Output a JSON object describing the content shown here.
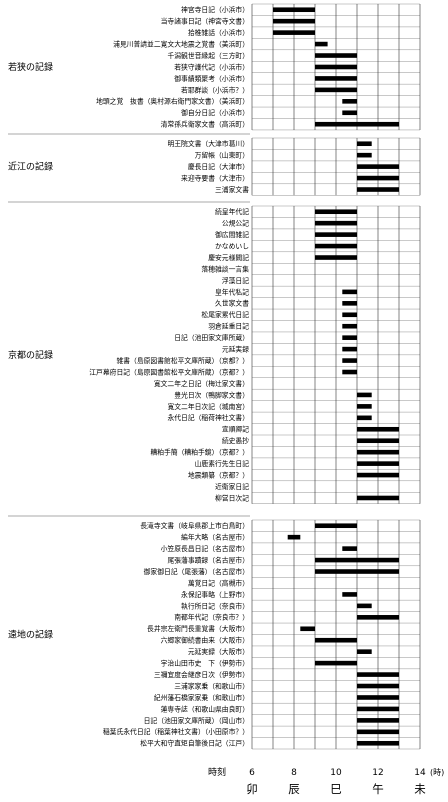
{
  "chart_data": {
    "type": "bar",
    "x_range": [
      6,
      14
    ],
    "x_ticks": [
      "6",
      "8",
      "10",
      "12",
      "14"
    ],
    "x_unit": "(時)",
    "x_axis_title": "時刻",
    "jikoku": [
      "卯",
      "辰",
      "巳",
      "午",
      "未"
    ],
    "groups": [
      {
        "name": "若狭の記録",
        "rows": [
          {
            "label": "神宮寺日記（小浜市）",
            "start": 7.0,
            "end": 9.0
          },
          {
            "label": "当寺諸事日記（神宮寺文書）",
            "start": 7.0,
            "end": 9.0
          },
          {
            "label": "拾椎雑話（小浜市）",
            "start": 7.0,
            "end": 9.0
          },
          {
            "label": "浦見川普請並二寛文大地震之覚書（美浜町）",
            "start": 9.0,
            "end": 9.6
          },
          {
            "label": "千潟観世音縁起（三方町）",
            "start": 9.0,
            "end": 11.0
          },
          {
            "label": "若狭守護代記（小浜市）",
            "start": 9.0,
            "end": 11.0
          },
          {
            "label": "御事績類聚考（小浜市）",
            "start": 9.0,
            "end": 11.0
          },
          {
            "label": "若耶群談（小浜市？）",
            "start": 9.0,
            "end": 11.0
          },
          {
            "label": "地頭之覚　抜書（奥村源右衛門家文書）（美浜町）",
            "start": 10.3,
            "end": 11.0
          },
          {
            "label": "御自分日記（小浜市）",
            "start": 10.3,
            "end": 11.0
          },
          {
            "label": "清常孫兵衛家文書（高浜町）",
            "start": 9.0,
            "end": 13.0
          }
        ]
      },
      {
        "name": "近江の記録",
        "rows": [
          {
            "label": "明王院文書（大津市葛川）",
            "start": 11.0,
            "end": 11.7
          },
          {
            "label": "万留帳（山東町）",
            "start": 11.0,
            "end": 11.7
          },
          {
            "label": "慶長日記（大津市）",
            "start": 11.0,
            "end": 13.0
          },
          {
            "label": "来迎寺要書（大津市）",
            "start": 11.0,
            "end": 13.0
          },
          {
            "label": "三浦家文書",
            "start": 11.0,
            "end": 13.0
          }
        ]
      },
      {
        "name": "京都の記録",
        "rows": [
          {
            "label": "続皇年代記",
            "start": 9.0,
            "end": 11.0
          },
          {
            "label": "公規公記",
            "start": 9.0,
            "end": 11.0
          },
          {
            "label": "御広間雑記",
            "start": 9.0,
            "end": 11.0
          },
          {
            "label": "かなめいし",
            "start": 9.0,
            "end": 11.0
          },
          {
            "label": "慶安元様闕記",
            "start": 9.0,
            "end": 11.0
          },
          {
            "label": "落穂雑談一言集",
            "start": null,
            "end": null
          },
          {
            "label": "浮藻日記",
            "start": null,
            "end": null
          },
          {
            "label": "皇年代私記",
            "start": 10.3,
            "end": 11.0
          },
          {
            "label": "久世家文書",
            "start": 10.3,
            "end": 11.0
          },
          {
            "label": "松尾家累代日記",
            "start": 10.3,
            "end": 11.0
          },
          {
            "label": "羽倉延重日記",
            "start": 10.3,
            "end": 11.0
          },
          {
            "label": "日記（池田家文庫所蔵）",
            "start": 10.3,
            "end": 11.0
          },
          {
            "label": "元延実録",
            "start": 10.3,
            "end": 11.0
          },
          {
            "label": "雑書（島原図書館松平文庫所蔵）（京都？）",
            "start": 10.3,
            "end": 11.0
          },
          {
            "label": "江戸幕府日記（島原図書館松平文庫所蔵）（京都？）",
            "start": 10.3,
            "end": 11.0
          },
          {
            "label": "寛文二年之日記（梅辻家文書）",
            "start": null,
            "end": null
          },
          {
            "label": "豊光日次（鴨脚家文書）",
            "start": 11.0,
            "end": 11.7
          },
          {
            "label": "寛文二年日次記（城南宮）",
            "start": 11.0,
            "end": 11.7
          },
          {
            "label": "永代日記（稲荷神社文書）",
            "start": 11.0,
            "end": 11.7
          },
          {
            "label": "宣順卿記",
            "start": 11.0,
            "end": 13.0
          },
          {
            "label": "続史愚抄",
            "start": 11.0,
            "end": 13.0
          },
          {
            "label": "糟粕手簡（糟粕手鏡）（京都？）",
            "start": 11.0,
            "end": 13.0
          },
          {
            "label": "山鹿素行先生日記",
            "start": 11.0,
            "end": 13.0
          },
          {
            "label": "地震類纂（京都？）",
            "start": 11.0,
            "end": 13.0
          },
          {
            "label": "近衛家日記",
            "start": null,
            "end": null
          },
          {
            "label": "柳営日次記",
            "start": 11.0,
            "end": 13.0
          }
        ]
      },
      {
        "name": "遠地の記録",
        "rows": [
          {
            "label": "長滝寺文書（岐阜県郡上市白鳥町）",
            "start": 9.0,
            "end": 11.0
          },
          {
            "label": "編年大略（名古屋市）",
            "start": 7.7,
            "end": 8.3
          },
          {
            "label": "小笠原長昌日記（名古屋市）",
            "start": 10.3,
            "end": 11.0
          },
          {
            "label": "尾張藩事蹟録（名古屋市）",
            "start": 9.0,
            "end": 13.0
          },
          {
            "label": "御家御日記（尾張藩）（名古屋市）",
            "start": 9.0,
            "end": 13.0
          },
          {
            "label": "萬覚日記（高槻市）",
            "start": null,
            "end": null
          },
          {
            "label": "永保記事略（上野市）",
            "start": 10.3,
            "end": 11.0
          },
          {
            "label": "執行所日記（奈良市）",
            "start": 11.0,
            "end": 11.7
          },
          {
            "label": "南都年代記（奈良市？）",
            "start": 11.0,
            "end": 13.0
          },
          {
            "label": "長井宗左衛門長重覚書（大阪市）",
            "start": 8.3,
            "end": 9.0
          },
          {
            "label": "六郷家御続書由来（大阪市）",
            "start": 9.0,
            "end": 11.0
          },
          {
            "label": "元延実録（大阪市）",
            "start": 11.0,
            "end": 11.7
          },
          {
            "label": "宇治山田市史　下（伊勢市）",
            "start": 9.0,
            "end": 11.0
          },
          {
            "label": "三禰宜度会継彦日次（伊勢市）",
            "start": 11.0,
            "end": 13.0
          },
          {
            "label": "三浦家家乗（和歌山市）",
            "start": 11.0,
            "end": 13.0
          },
          {
            "label": "紀州藩石橋家家乗（和歌山市）",
            "start": 11.0,
            "end": 13.0
          },
          {
            "label": "蓮専寺誌（和歌山県由良町）",
            "start": 11.0,
            "end": 13.0
          },
          {
            "label": "日記（池田家文庫所蔵）（岡山市）",
            "start": 11.0,
            "end": 13.0
          },
          {
            "label": "稲葉氏永代日記（稲葉神社文書）（小田原市？）",
            "start": 11.0,
            "end": 13.0
          },
          {
            "label": "松平大和守直矩自筆後日記（江戸）",
            "start": 11.0,
            "end": 13.0
          }
        ]
      }
    ]
  }
}
